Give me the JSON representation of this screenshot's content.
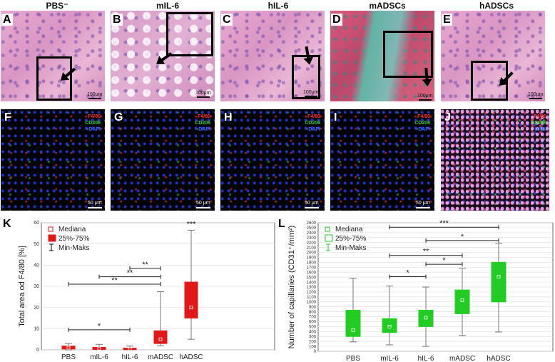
{
  "headers": [
    "PBS⁻",
    "mIL-6",
    "hIL-6",
    "mADSCs",
    "hADSCs"
  ],
  "panel_labels_top": [
    "A",
    "B",
    "C",
    "D",
    "E"
  ],
  "panel_labels_mid": [
    "F",
    "G",
    "H",
    "I",
    "J"
  ],
  "scale_top": "100μm",
  "scale_mid": "50 μm",
  "channels": [
    "F4/80",
    "CD206",
    "DAPI"
  ],
  "colors": {
    "red": "#e01818",
    "green": "#22cc22",
    "black": "#000000"
  },
  "chart_data": [
    {
      "panel": "K",
      "type": "box",
      "ylabel": "Total area od F4/80 [%]",
      "categories": [
        "PBS",
        "mIL-6",
        "hIL-6",
        "mADSC",
        "hADSC"
      ],
      "ylim": [
        0,
        60
      ],
      "yticks": [
        "0",
        "10",
        "20",
        "30",
        "40",
        "50",
        "60"
      ],
      "legend": [
        "Mediana",
        "25%-75%",
        "Min-Maks"
      ],
      "legend_position": "top-left",
      "box_color": "#e01818",
      "boxes": [
        {
          "min": 0,
          "q1": 0.4,
          "median": 1,
          "q3": 1.8,
          "max": 3
        },
        {
          "min": 0,
          "q1": 0.2,
          "median": 0.6,
          "q3": 1.2,
          "max": 2.6
        },
        {
          "min": 0,
          "q1": 0.1,
          "median": 0.4,
          "q3": 0.8,
          "max": 1.8
        },
        {
          "min": 2,
          "q1": 3,
          "median": 5,
          "q3": 9,
          "max": 27.5
        },
        {
          "min": 5,
          "q1": 15,
          "median": 20,
          "q3": 32,
          "max": 56.5
        }
      ],
      "significance": [
        {
          "from": 0,
          "to": 2,
          "label": "*",
          "y": 9.5
        },
        {
          "from": 0,
          "to": 3,
          "label": "**",
          "y": 31
        },
        {
          "from": 1,
          "to": 3,
          "label": "**",
          "y": 34.5
        },
        {
          "from": 2,
          "to": 3,
          "label": "**",
          "y": 38.5
        },
        {
          "from": 4,
          "to": 4,
          "label": "***",
          "y": 57.5
        }
      ]
    },
    {
      "panel": "L",
      "type": "box",
      "ylabel": "Number of capillaries (CD31⁺/mm²)",
      "categories": [
        "PBS",
        "mIL-6",
        "hIL-6",
        "mADSC",
        "hADSC"
      ],
      "ylim": [
        0,
        2600
      ],
      "yticks": [
        "0",
        "100",
        "200",
        "300",
        "400",
        "500",
        "600",
        "700",
        "800",
        "900",
        "1000",
        "1100",
        "1200",
        "1300",
        "1400",
        "1500",
        "1600",
        "1700",
        "1800",
        "1900",
        "2000",
        "2100",
        "2200",
        "2300",
        "2400",
        "2500",
        "2600"
      ],
      "legend": [
        "Mediana",
        "25%-75%",
        "Min-Maks"
      ],
      "legend_position": "top-left",
      "box_color": "#22cc22",
      "boxes": [
        {
          "min": 190,
          "q1": 300,
          "median": 430,
          "q3": 830,
          "max": 1480
        },
        {
          "min": 130,
          "q1": 380,
          "median": 500,
          "q3": 660,
          "max": 1320
        },
        {
          "min": 100,
          "q1": 500,
          "median": 680,
          "q3": 830,
          "max": 1300
        },
        {
          "min": 320,
          "q1": 760,
          "median": 1030,
          "q3": 1240,
          "max": 1680
        },
        {
          "min": 390,
          "q1": 1000,
          "median": 1510,
          "q3": 1800,
          "max": 2180
        }
      ],
      "significance": [
        {
          "from": 1,
          "to": 2,
          "label": "*",
          "y": 1510
        },
        {
          "from": 2,
          "to": 3,
          "label": "*",
          "y": 1760
        },
        {
          "from": 1,
          "to": 3,
          "label": "**",
          "y": 1940
        },
        {
          "from": 2,
          "to": 4,
          "label": "*",
          "y": 2240
        },
        {
          "from": 1,
          "to": 4,
          "label": "***",
          "y": 2510
        }
      ]
    }
  ]
}
